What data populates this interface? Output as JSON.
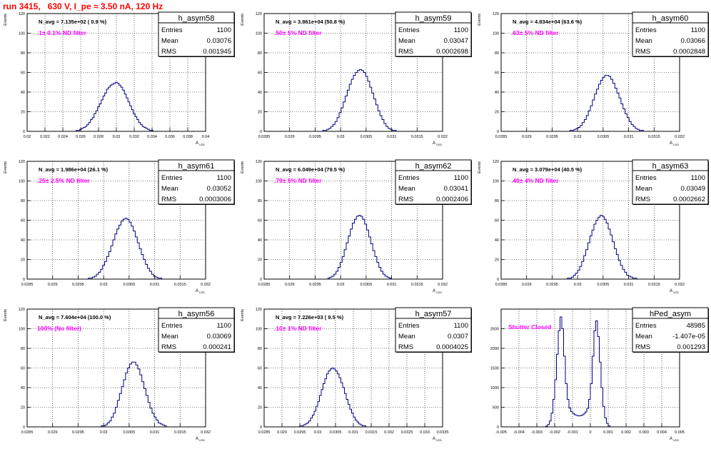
{
  "run_title": "run 3415,   630 V, I_pe ≈ 3.50 nA, 120 Hz",
  "colors": {
    "histogram": "#000080",
    "filter_text": "#ff00ff",
    "run_title": "#ff0000",
    "grid": "#000000"
  },
  "chart_data": [
    {
      "type": "histogram",
      "name": "h_asym58",
      "ylabel": "Events",
      "xlabel": "A",
      "navg": "N_avg = 7.135e+02 ( 0.9 %)",
      "filter": ".1± 0.1% ND filter",
      "stats": {
        "Entries": "1100",
        "Mean": "0.03076",
        "RMS": "0.001945"
      },
      "xlim": [
        0.02,
        0.04
      ],
      "ylim": [
        0,
        120
      ],
      "grid": true,
      "xticks": [
        0.02,
        0.022,
        0.024,
        0.026,
        0.028,
        0.03,
        0.032,
        0.034,
        0.036,
        0.038,
        0.04
      ],
      "xtick_labels": [
        "0.02",
        "0.022",
        "0.024",
        "0.026",
        "0.028",
        "0.03",
        "0.032",
        "0.034",
        "0.036",
        "0.038",
        "0.04"
      ],
      "yticks": [
        0,
        20,
        40,
        60,
        80,
        100,
        120
      ],
      "hist": {
        "x_start": 0.0255,
        "bin_width": 0.0002,
        "counts": [
          1,
          1,
          2,
          3,
          4,
          5,
          7,
          9,
          12,
          14,
          18,
          21,
          25,
          28,
          32,
          36,
          39,
          43,
          45,
          47,
          48,
          49,
          50,
          49,
          47,
          45,
          42,
          38,
          34,
          30,
          26,
          22,
          18,
          15,
          12,
          9,
          7,
          5,
          4,
          3,
          2,
          1,
          1
        ]
      }
    },
    {
      "type": "histogram",
      "name": "h_asym59",
      "ylabel": "Events",
      "xlabel": "A",
      "navg": "N_avg = 3.861e+04 (50.8 %)",
      "filter": ".50± 5% ND filter",
      "stats": {
        "Entries": "1100",
        "Mean": "0.03047",
        "RMS": "0.0002698"
      },
      "xlim": [
        0.0285,
        0.032
      ],
      "ylim": [
        0,
        120
      ],
      "grid": true,
      "xticks": [
        0.0285,
        0.029,
        0.0295,
        0.03,
        0.0305,
        0.031,
        0.0315,
        0.032
      ],
      "xtick_labels": [
        "0.0285",
        "0.029",
        "0.0295",
        "0.03",
        "0.0305",
        "0.031",
        "0.0315",
        "0.032"
      ],
      "yticks": [
        0,
        20,
        40,
        60,
        80,
        100,
        120
      ],
      "hist": {
        "x_start": 0.02965,
        "bin_width": 4e-05,
        "counts": [
          1,
          1,
          2,
          3,
          5,
          7,
          10,
          14,
          19,
          24,
          30,
          36,
          42,
          48,
          53,
          57,
          60,
          62,
          63,
          62,
          60,
          56,
          51,
          45,
          39,
          33,
          27,
          21,
          16,
          12,
          8,
          5,
          3,
          2,
          1,
          1
        ]
      }
    },
    {
      "type": "histogram",
      "name": "h_asym60",
      "ylabel": "Events",
      "xlabel": "A",
      "navg": "N_avg = 4.834e+04 (63.6 %)",
      "filter": ".63± 5% ND filter",
      "stats": {
        "Entries": "1100",
        "Mean": "0.03066",
        "RMS": "0.0002848"
      },
      "xlim": [
        0.0285,
        0.032
      ],
      "ylim": [
        0,
        120
      ],
      "grid": true,
      "xticks": [
        0.0285,
        0.029,
        0.0295,
        0.03,
        0.0305,
        0.031,
        0.0315,
        0.032
      ],
      "xtick_labels": [
        "0.0285",
        "0.029",
        "0.0295",
        "0.03",
        "0.0305",
        "0.031",
        "0.0315",
        "0.032"
      ],
      "yticks": [
        0,
        20,
        40,
        60,
        80,
        100,
        120
      ],
      "hist": {
        "x_start": 0.02985,
        "bin_width": 4e-05,
        "counts": [
          1,
          1,
          2,
          3,
          4,
          6,
          9,
          12,
          16,
          21,
          26,
          32,
          38,
          43,
          48,
          52,
          55,
          57,
          57,
          56,
          53,
          49,
          44,
          39,
          34,
          28,
          23,
          18,
          14,
          10,
          7,
          5,
          3,
          2,
          1,
          1
        ]
      }
    },
    {
      "type": "histogram",
      "name": "h_asym61",
      "ylabel": "Events",
      "xlabel": "A",
      "navg": "N_avg = 1.986e+04 (26.1 %)",
      "filter": ".25± 2.5% ND filter",
      "stats": {
        "Entries": "1100",
        "Mean": "0.03052",
        "RMS": "0.0003006"
      },
      "xlim": [
        0.0285,
        0.032
      ],
      "ylim": [
        0,
        120
      ],
      "grid": true,
      "xticks": [
        0.0285,
        0.029,
        0.0295,
        0.03,
        0.0305,
        0.031,
        0.0315,
        0.032
      ],
      "xtick_labels": [
        "0.0285",
        "0.029",
        "0.0295",
        "0.03",
        "0.0305",
        "0.031",
        "0.0315",
        "0.032"
      ],
      "yticks": [
        0,
        20,
        40,
        60,
        80,
        100,
        120
      ],
      "hist": {
        "x_start": 0.0297,
        "bin_width": 4e-05,
        "counts": [
          1,
          1,
          2,
          3,
          5,
          7,
          10,
          14,
          18,
          23,
          28,
          34,
          40,
          46,
          51,
          55,
          59,
          61,
          62,
          61,
          58,
          54,
          49,
          43,
          37,
          31,
          25,
          20,
          15,
          11,
          8,
          5,
          3,
          2,
          1,
          1
        ]
      }
    },
    {
      "type": "histogram",
      "name": "h_asym62",
      "ylabel": "Events",
      "xlabel": "A",
      "navg": "N_avg = 6.049e+04 (79.5 %)",
      "filter": ".79± 5% ND filter",
      "stats": {
        "Entries": "1100",
        "Mean": "0.03041",
        "RMS": "0.0002406"
      },
      "xlim": [
        0.0285,
        0.032
      ],
      "ylim": [
        0,
        120
      ],
      "grid": true,
      "xticks": [
        0.0285,
        0.029,
        0.0295,
        0.03,
        0.0305,
        0.031,
        0.0315,
        0.032
      ],
      "xtick_labels": [
        "0.0285",
        "0.029",
        "0.0295",
        "0.03",
        "0.0305",
        "0.031",
        "0.0315",
        "0.032"
      ],
      "yticks": [
        0,
        20,
        40,
        60,
        80,
        100,
        120
      ],
      "hist": {
        "x_start": 0.02975,
        "bin_width": 4e-05,
        "counts": [
          1,
          2,
          3,
          5,
          8,
          12,
          17,
          23,
          30,
          37,
          44,
          51,
          57,
          61,
          64,
          65,
          64,
          61,
          56,
          50,
          43,
          36,
          29,
          23,
          17,
          12,
          8,
          5,
          3,
          2,
          1
        ]
      }
    },
    {
      "type": "histogram",
      "name": "h_asym63",
      "ylabel": "Events",
      "xlabel": "A",
      "navg": "N_avg = 3.079e+04 (40.5 %)",
      "filter": ".40± 4% ND filter",
      "stats": {
        "Entries": "1100",
        "Mean": "0.03049",
        "RMS": "0.0002662"
      },
      "xlim": [
        0.0285,
        0.032
      ],
      "ylim": [
        0,
        120
      ],
      "grid": true,
      "xticks": [
        0.0285,
        0.029,
        0.0295,
        0.03,
        0.0305,
        0.031,
        0.0315,
        0.032
      ],
      "xtick_labels": [
        "0.0285",
        "0.029",
        "0.0295",
        "0.03",
        "0.0305",
        "0.031",
        "0.0315",
        "0.032"
      ],
      "yticks": [
        0,
        20,
        40,
        60,
        80,
        100,
        120
      ],
      "hist": {
        "x_start": 0.0298,
        "bin_width": 4e-05,
        "counts": [
          1,
          1,
          2,
          4,
          6,
          9,
          13,
          18,
          24,
          30,
          37,
          44,
          50,
          56,
          60,
          63,
          65,
          64,
          61,
          57,
          51,
          45,
          38,
          31,
          25,
          19,
          14,
          10,
          7,
          4,
          3,
          2,
          1,
          1
        ]
      }
    },
    {
      "type": "histogram",
      "name": "h_asym56",
      "ylabel": "Events",
      "xlabel": "A",
      "navg": "N_avg = 7.604e+04 (100.0 %)",
      "filter": "100% (No filter)",
      "stats": {
        "Entries": "1100",
        "Mean": "0.03069",
        "RMS": "0.000241"
      },
      "xlim": [
        0.0285,
        0.032
      ],
      "ylim": [
        0,
        120
      ],
      "grid": true,
      "xticks": [
        0.0285,
        0.029,
        0.0295,
        0.03,
        0.0305,
        0.031,
        0.0315,
        0.032
      ],
      "xtick_labels": [
        "0.0285",
        "0.029",
        "0.0295",
        "0.03",
        "0.0305",
        "0.031",
        "0.0315",
        "0.032"
      ],
      "yticks": [
        0,
        20,
        40,
        60,
        80,
        100,
        120
      ],
      "hist": {
        "x_start": 0.02995,
        "bin_width": 4e-05,
        "counts": [
          1,
          1,
          2,
          4,
          6,
          10,
          14,
          20,
          27,
          34,
          41,
          48,
          55,
          60,
          64,
          66,
          66,
          63,
          59,
          53,
          46,
          39,
          32,
          25,
          19,
          14,
          10,
          7,
          4,
          3,
          2,
          1
        ]
      }
    },
    {
      "type": "histogram",
      "name": "h_asym57",
      "ylabel": "Events",
      "xlabel": "A",
      "navg": "N_avg = 7.226e+03 ( 9.5 %)",
      "filter": ".10± 1% ND filter",
      "stats": {
        "Entries": "1100",
        "Mean": "0.0307",
        "RMS": "0.0004025"
      },
      "xlim": [
        0.0285,
        0.0335
      ],
      "ylim": [
        0,
        120
      ],
      "grid": true,
      "xticks": [
        0.0285,
        0.029,
        0.0295,
        0.03,
        0.0305,
        0.031,
        0.0315,
        0.032,
        0.0325,
        0.033,
        0.0335
      ],
      "xtick_labels": [
        "0.0285",
        "0.029",
        "0.0295",
        "0.03",
        "0.0305",
        "0.031",
        "0.0315",
        "0.032",
        "0.0325",
        "0.033",
        "0.0335"
      ],
      "yticks": [
        0,
        20,
        40,
        60,
        80,
        100,
        120
      ],
      "hist": {
        "x_start": 0.0295,
        "bin_width": 5e-05,
        "counts": [
          1,
          1,
          2,
          3,
          4,
          6,
          9,
          12,
          16,
          21,
          26,
          32,
          38,
          44,
          49,
          54,
          57,
          59,
          60,
          59,
          57,
          54,
          50,
          45,
          40,
          34,
          28,
          23,
          18,
          14,
          10,
          7,
          5,
          3,
          2,
          1,
          1
        ]
      }
    },
    {
      "type": "histogram",
      "name": "hPed_asym",
      "ylabel": "",
      "xlabel": "A",
      "navg": "",
      "filter": "Shutter Closed",
      "stats": {
        "Entries": "48985",
        "Mean": "-1.407e-05",
        "RMS": "0.001293"
      },
      "xlim": [
        -0.005,
        0.005
      ],
      "ylim": [
        0,
        3000
      ],
      "grid": true,
      "xticks": [
        -0.005,
        -0.004,
        -0.003,
        -0.002,
        -0.001,
        0,
        0.001,
        0.002,
        0.003,
        0.004,
        0.005
      ],
      "xtick_labels": [
        "-0.005",
        "-0.004",
        "-0.003",
        "-0.002",
        "-0.001",
        "0",
        "0.001",
        "0.002",
        "0.003",
        "0.004",
        "0.005"
      ],
      "yticks": [
        0,
        500,
        1000,
        1500,
        2000,
        2500
      ],
      "hist": {
        "x_start": -0.0025,
        "bin_width": 0.0001,
        "counts": [
          20,
          60,
          150,
          350,
          700,
          1200,
          1850,
          2450,
          2800,
          2500,
          1800,
          1100,
          700,
          480,
          390,
          340,
          310,
          290,
          280,
          285,
          300,
          330,
          380,
          470,
          700,
          1100,
          1800,
          2450,
          2700,
          2300,
          1650,
          1000,
          520,
          230,
          90,
          30
        ]
      }
    }
  ]
}
